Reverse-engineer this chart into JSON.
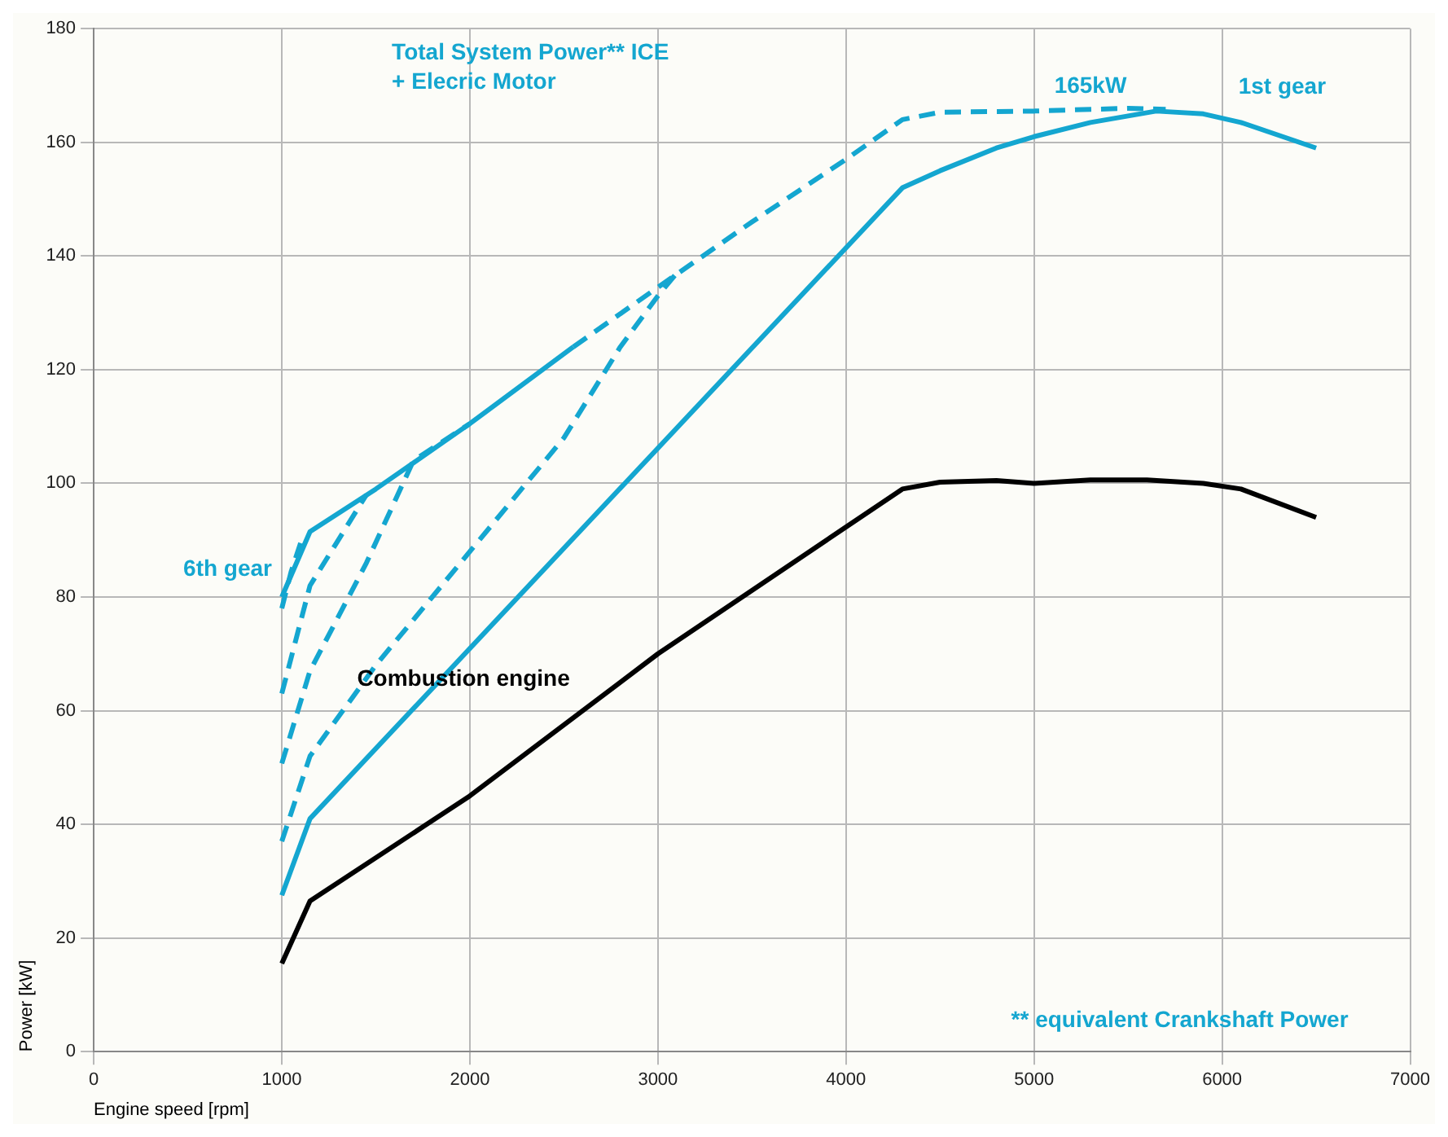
{
  "chart_data": {
    "type": "line",
    "xlabel": "Engine speed [rpm]",
    "ylabel": "Power [kW]",
    "xlim": [
      0,
      7000
    ],
    "xticks": [
      0,
      1000,
      2000,
      3000,
      4000,
      5000,
      6000,
      7000
    ],
    "ylim": [
      0,
      180
    ],
    "yticks": [
      0,
      20,
      40,
      60,
      80,
      100,
      120,
      140,
      160,
      180
    ],
    "grid": true,
    "marker": "none",
    "series": [
      {
        "color": "#000000",
        "x": [
          1000,
          1150,
          2000,
          3000,
          4300,
          4500,
          4800,
          5000,
          5300,
          5600,
          5900,
          6100,
          6500
        ],
        "values": [
          15.5,
          26.5,
          45,
          70,
          99,
          100.2,
          100.5,
          100,
          100.6,
          100.6,
          100,
          99,
          94
        ]
      },
      {
        "color": "#14a6d0",
        "x": [
          1000,
          1150,
          4300,
          4500,
          4800,
          5000,
          5300,
          5650,
          5900,
          6100,
          6500
        ],
        "values": [
          27.5,
          41,
          152,
          155,
          159,
          161,
          163.5,
          165.5,
          165,
          163.5,
          159
        ]
      },
      {
        "color": "#14a6d0",
        "x": [
          1000,
          1150,
          1500,
          2000,
          2550
        ],
        "values": [
          80,
          91.5,
          99,
          110.5,
          124
        ]
      },
      {
        "color": "#14a6d0",
        "line_style": "dashed",
        "x": [
          2550,
          3000,
          3500,
          4000,
          4300,
          4500,
          5000,
          5500,
          5700
        ],
        "values": [
          124,
          134.5,
          146,
          157,
          164,
          165.3,
          165.5,
          166,
          165.8
        ]
      },
      {
        "color": "#14a6d0",
        "line_style": "dashed",
        "x": [
          1000,
          1150,
          1500,
          2000,
          2500,
          2800,
          3000,
          3100
        ],
        "values": [
          37,
          52,
          68,
          88,
          108,
          124,
          133,
          137
        ]
      },
      {
        "color": "#14a6d0",
        "line_style": "dashed",
        "x": [
          1000,
          1150,
          1450,
          1700,
          2000
        ],
        "values": [
          50.7,
          67,
          86,
          104,
          110.5
        ]
      },
      {
        "color": "#14a6d0",
        "line_style": "dashed",
        "x": [
          1000,
          1150,
          1450
        ],
        "values": [
          63,
          82,
          98
        ]
      },
      {
        "color": "#14a6d0",
        "line_style": "dashed",
        "x": [
          1000,
          1050,
          1100
        ],
        "values": [
          78,
          84.5,
          89.5
        ]
      }
    ],
    "annotations": [
      "Total System Power** ICE\n+ Elecric Motor",
      "** equivalent Crankshaft Power",
      {
        "text": "165kW",
        "x": 5300,
        "y": 165.5
      },
      {
        "text": "1st gear",
        "x": 6500,
        "y": 159
      },
      {
        "text": "6th gear",
        "x": 1000,
        "y": 80
      },
      "Combustion engine"
    ]
  }
}
